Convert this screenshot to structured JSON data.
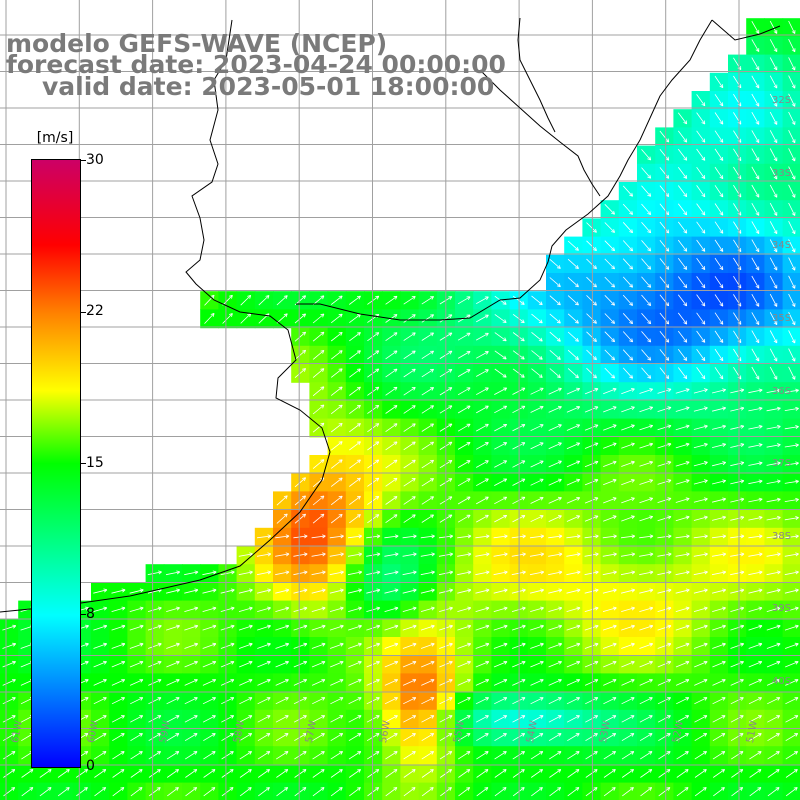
{
  "titles": {
    "model": "modelo GEFS-WAVE (NCEP)",
    "forecast": "forecast date: 2023-04-24 00:00:00",
    "valid": "valid date: 2023-05-01 18:00:00"
  },
  "colorbar": {
    "unit": "[m/s]",
    "min": 0,
    "max": 30,
    "ticks": [
      "0",
      "8",
      "15",
      "22",
      "30"
    ],
    "colors": [
      "#0000ff",
      "#00ffff",
      "#00ff00",
      "#ffff00",
      "#ff7f00",
      "#ff0000",
      "#cc0066"
    ]
  },
  "lon_labels": [
    "61W",
    "60W",
    "59W",
    "58W",
    "57W",
    "56W",
    "55W",
    "54W",
    "53W",
    "52W",
    "51W"
  ],
  "lat_labels": [
    "32S",
    "33S",
    "34S",
    "35S",
    "36S",
    "37S",
    "38S",
    "39S",
    "40S"
  ],
  "colors": {
    "grid": "#a0a0a0",
    "coast": "#000000",
    "arrow": "#ffffff",
    "title": "#7a7a7a"
  }
}
